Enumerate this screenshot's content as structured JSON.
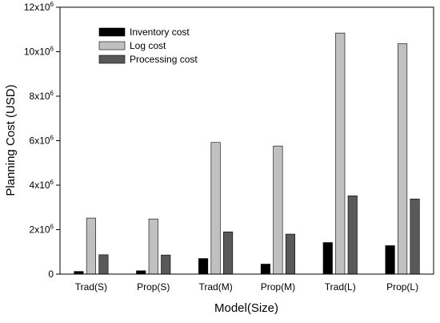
{
  "chart_data": {
    "type": "bar",
    "categories": [
      "Trad(S)",
      "Prop(S)",
      "Trad(M)",
      "Prop(M)",
      "Trad(L)",
      "Prop(L)"
    ],
    "series": [
      {
        "name": "Inventory cost",
        "color": "#000000",
        "values": [
          120000,
          150000,
          700000,
          450000,
          1420000,
          1280000
        ]
      },
      {
        "name": "Log cost",
        "color": "#c0c0c0",
        "values": [
          2520000,
          2480000,
          5920000,
          5760000,
          10840000,
          10360000
        ]
      },
      {
        "name": "Processing cost",
        "color": "#595959",
        "values": [
          870000,
          860000,
          1900000,
          1800000,
          3520000,
          3380000
        ]
      }
    ],
    "xlabel": "Model(Size)",
    "ylabel": "Planning Cost (USD)",
    "ylim": [
      0,
      12000000
    ],
    "yticks": [
      {
        "base": "0",
        "exp": ""
      },
      {
        "base": "2x10",
        "exp": "6"
      },
      {
        "base": "4x10",
        "exp": "6"
      },
      {
        "base": "6x10",
        "exp": "6"
      },
      {
        "base": "8x10",
        "exp": "6"
      },
      {
        "base": "10x10",
        "exp": "6"
      },
      {
        "base": "12x10",
        "exp": "6"
      }
    ],
    "legend_position": "top-left",
    "grid": false
  }
}
